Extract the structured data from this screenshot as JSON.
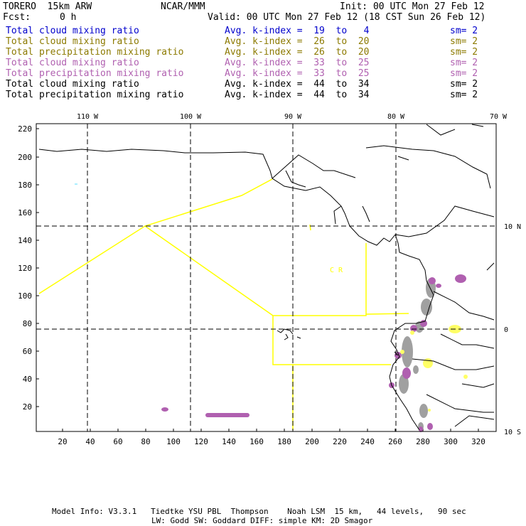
{
  "header": {
    "model": "TORERO  15km ARW",
    "org": "NCAR/MMM",
    "init": "Init: 00 UTC Mon 27 Feb 12",
    "fcst_label": "Fcst:",
    "fcst_value": "0 h",
    "valid": "Valid: 00 UTC Mon 27 Feb 12 (18 CST Sun 26 Feb 12)"
  },
  "legend": [
    {
      "field": "Total cloud mixing ratio",
      "kindex": "Avg. k-index =  19  to   4",
      "sm": "sm= 2",
      "color": "#0000cc"
    },
    {
      "field": "Total cloud mixing ratio",
      "kindex": "Avg. k-index =  26  to  20",
      "sm": "sm= 2",
      "color": "#8c7a00"
    },
    {
      "field": "Total precipitation mixing ratio",
      "kindex": "Avg. k-index =  26  to  20",
      "sm": "sm= 2",
      "color": "#8c7a00"
    },
    {
      "field": "Total cloud mixing ratio",
      "kindex": "Avg. k-index =  33  to  25",
      "sm": "sm= 2",
      "color": "#b060b0"
    },
    {
      "field": "Total precipitation mixing ratio",
      "kindex": "Avg. k-index =  33  to  25",
      "sm": "sm= 2",
      "color": "#b060b0"
    },
    {
      "field": "Total cloud mixing ratio",
      "kindex": "Avg. k-index =  44  to  34",
      "sm": "sm= 2",
      "color": "#000000"
    },
    {
      "field": "Total precipitation mixing ratio",
      "kindex": "Avg. k-index =  44  to  34",
      "sm": "sm= 2",
      "color": "#000000"
    }
  ],
  "map": {
    "lon_labels": [
      "110 W",
      "100 W",
      "90 W",
      "80 W",
      "70 W"
    ],
    "lat_labels": [
      "10 N",
      "0",
      "10 S"
    ],
    "y_ticks": [
      "220",
      "200",
      "180",
      "160",
      "140",
      "120",
      "100",
      "80",
      "60",
      "40",
      "20"
    ],
    "x_ticks": [
      "20",
      "40",
      "60",
      "80",
      "100",
      "120",
      "140",
      "160",
      "180",
      "200",
      "220",
      "240",
      "260",
      "280",
      "300",
      "320"
    ],
    "annotation": "C  R",
    "colors": {
      "coast": "#000000",
      "grid": "#000000",
      "boundary": "#ffff00",
      "purple": "#b060b0",
      "gray": "#a0a0a0",
      "yellow": "#ffff66",
      "cyan": "#aaeeff"
    }
  },
  "footer": {
    "line1": "Model Info: V3.3.1   Tiedtke YSU PBL  Thompson    Noah LSM  15 km,   44 levels,   90 sec",
    "line2": "LW: Godd SW: Goddard DIFF: simple KM: 2D Smagor"
  }
}
